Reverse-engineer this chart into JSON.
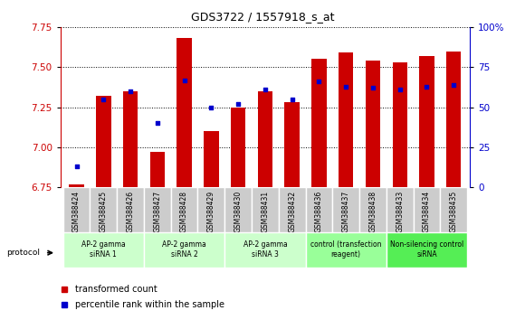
{
  "title": "GDS3722 / 1557918_s_at",
  "samples": [
    "GSM388424",
    "GSM388425",
    "GSM388426",
    "GSM388427",
    "GSM388428",
    "GSM388429",
    "GSM388430",
    "GSM388431",
    "GSM388432",
    "GSM388436",
    "GSM388437",
    "GSM388438",
    "GSM388433",
    "GSM388434",
    "GSM388435"
  ],
  "red_values": [
    6.77,
    7.32,
    7.35,
    6.97,
    7.68,
    7.1,
    7.25,
    7.35,
    7.28,
    7.55,
    7.59,
    7.54,
    7.53,
    7.57,
    7.6
  ],
  "blue_pct": [
    13,
    55,
    60,
    40,
    67,
    50,
    52,
    61,
    55,
    66,
    63,
    62,
    61,
    63,
    64
  ],
  "ylim_left": [
    6.75,
    7.75
  ],
  "ylim_right": [
    0,
    100
  ],
  "yticks_left": [
    6.75,
    7.0,
    7.25,
    7.5,
    7.75
  ],
  "yticks_right": [
    0,
    25,
    50,
    75,
    100
  ],
  "bar_color": "#CC0000",
  "dot_color": "#0000CC",
  "groups": [
    {
      "label": "AP-2 gamma\nsiRNA 1",
      "indices": [
        0,
        1,
        2
      ],
      "color": "#CCFFCC"
    },
    {
      "label": "AP-2 gamma\nsiRNA 2",
      "indices": [
        3,
        4,
        5
      ],
      "color": "#CCFFCC"
    },
    {
      "label": "AP-2 gamma\nsiRNA 3",
      "indices": [
        6,
        7,
        8
      ],
      "color": "#CCFFCC"
    },
    {
      "label": "control (transfection\nreagent)",
      "indices": [
        9,
        10,
        11
      ],
      "color": "#99FF99"
    },
    {
      "label": "Non-silencing control\nsiRNA",
      "indices": [
        12,
        13,
        14
      ],
      "color": "#55EE55"
    }
  ],
  "protocol_label": "protocol",
  "legend_red": "transformed count",
  "legend_blue": "percentile rank within the sample",
  "cell_bg": "#CCCCCC",
  "cell_border": "#FFFFFF"
}
